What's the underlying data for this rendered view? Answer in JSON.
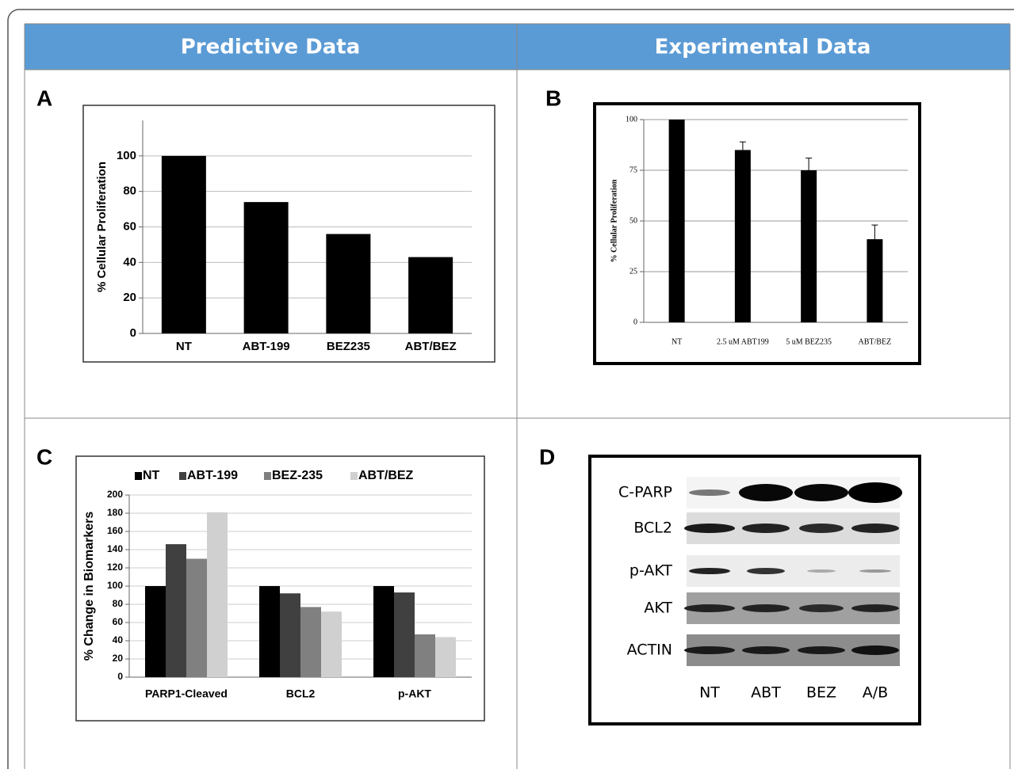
{
  "header": {
    "columns": [
      "Predictive Data",
      "Experimental Data"
    ]
  },
  "panels": [
    "A",
    "B",
    "C",
    "D"
  ],
  "chart_data": [
    {
      "type": "bar",
      "y_label": "% Cellular Proliferation",
      "categories": [
        "NT",
        "ABT-199",
        "BEZ235",
        "ABT/BEZ"
      ],
      "values": [
        100,
        74,
        56,
        43
      ],
      "color": "#000000",
      "ylim": [
        0,
        120
      ],
      "yticks": [
        0,
        20,
        40,
        60,
        80,
        100
      ],
      "grid": true
    },
    {
      "type": "bar",
      "y_label": "% Cellular Proliferation",
      "categories": [
        "NT",
        "2.5 uM ABT199",
        "5 uM BEZ235",
        "ABT/BEZ"
      ],
      "values": [
        100,
        85,
        75,
        41
      ],
      "errors": [
        null,
        4,
        6,
        7
      ],
      "color": "#000000",
      "ylim": [
        0,
        100
      ],
      "yticks": [
        0,
        25,
        50,
        75,
        100
      ],
      "grid": true
    },
    {
      "type": "grouped_bar",
      "y_label": "% Change in Biomarkers",
      "categories": [
        "PARP1-Cleaved",
        "BCL2",
        "p-AKT"
      ],
      "series": [
        {
          "name": "NT",
          "color": "#000000",
          "values": [
            100,
            100,
            100
          ]
        },
        {
          "name": "ABT-199",
          "color": "#404040",
          "values": [
            146,
            92,
            93
          ]
        },
        {
          "name": "BEZ-235",
          "color": "#808080",
          "values": [
            130,
            77,
            47
          ]
        },
        {
          "name": "ABT/BEZ",
          "color": "#d0d0d0",
          "values": [
            181,
            72,
            44
          ]
        }
      ],
      "ylim": [
        0,
        200
      ],
      "yticks": [
        0,
        20,
        40,
        60,
        80,
        100,
        120,
        140,
        160,
        180,
        200
      ],
      "grid": true,
      "legend": "top"
    }
  ],
  "blot": {
    "rows": [
      "C-PARP",
      "BCL2",
      "p-AKT",
      "AKT",
      "ACTIN"
    ],
    "lanes": [
      "NT",
      "ABT",
      "BEZ",
      "A/B"
    ]
  }
}
